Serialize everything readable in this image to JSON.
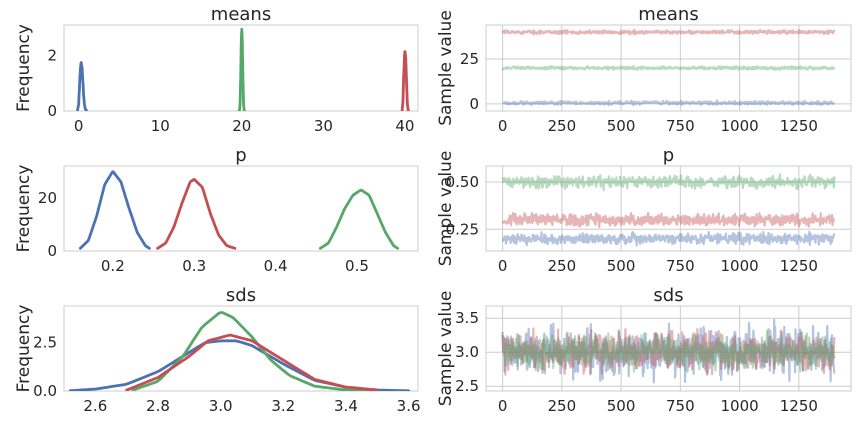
{
  "colors": {
    "blue": "#4c72b0",
    "green": "#55a868",
    "red": "#c44e52",
    "grid": "#cccccc",
    "text": "#262626"
  },
  "chart_data": [
    {
      "type": "line",
      "subtype": "kde",
      "title": "means",
      "xlabel": "",
      "ylabel": "Frequency",
      "xlim": [
        -1.8,
        41.6
      ],
      "ylim": [
        0,
        3.1
      ],
      "xticks": [
        0,
        10,
        20,
        30,
        40
      ],
      "xticklabels": [
        "0",
        "10",
        "20",
        "30",
        "40"
      ],
      "yticks": [
        0,
        2
      ],
      "yticklabels": [
        "0",
        "2"
      ],
      "grid": false,
      "series": [
        {
          "color": "blue",
          "x": [
            -0.15,
            0.0,
            0.1,
            0.2,
            0.3,
            0.4,
            0.5,
            0.6,
            0.7,
            0.8,
            0.95
          ],
          "y": [
            0.02,
            0.25,
            0.9,
            1.5,
            1.75,
            1.6,
            1.15,
            0.6,
            0.25,
            0.08,
            0.02
          ]
        },
        {
          "color": "green",
          "x": [
            19.7,
            19.78,
            19.86,
            19.94,
            20.0,
            20.06,
            20.14,
            20.22,
            20.3
          ],
          "y": [
            0.02,
            0.2,
            1.2,
            2.6,
            2.95,
            2.5,
            1.1,
            0.2,
            0.02
          ]
        },
        {
          "color": "red",
          "x": [
            39.65,
            39.75,
            39.85,
            39.95,
            40.0,
            40.1,
            40.2,
            40.3,
            40.4
          ],
          "y": [
            0.02,
            0.3,
            1.3,
            2.0,
            2.15,
            1.9,
            1.0,
            0.25,
            0.02
          ]
        }
      ]
    },
    {
      "type": "line",
      "subtype": "trace",
      "title": "means",
      "xlabel": "",
      "ylabel": "Sample value",
      "xlim": [
        -70,
        1470
      ],
      "ylim": [
        -4,
        44
      ],
      "xticks": [
        0,
        250,
        500,
        750,
        1000,
        1250
      ],
      "xticklabels": [
        "0",
        "250",
        "500",
        "750",
        "1000",
        "1250"
      ],
      "yticks": [
        0,
        25
      ],
      "yticklabels": [
        "0",
        "25"
      ],
      "grid": true,
      "n_samples": 1400,
      "series": [
        {
          "color": "red",
          "x": [
            0,
            1400
          ],
          "y": [
            40,
            40
          ],
          "band": 1.4
        },
        {
          "color": "green",
          "x": [
            0,
            1400
          ],
          "y": [
            20,
            20
          ],
          "band": 1.2
        },
        {
          "color": "blue",
          "x": [
            0,
            1400
          ],
          "y": [
            0.5,
            0.5
          ],
          "band": 1.4
        }
      ]
    },
    {
      "type": "line",
      "subtype": "kde",
      "title": "p",
      "xlabel": "",
      "ylabel": "Frequency",
      "xlim": [
        0.14,
        0.575
      ],
      "ylim": [
        0,
        32
      ],
      "xticks": [
        0.2,
        0.3,
        0.4,
        0.5
      ],
      "xticklabels": [
        "0.2",
        "0.3",
        "0.4",
        "0.5"
      ],
      "yticks": [
        0,
        20
      ],
      "yticklabels": [
        "0",
        "20"
      ],
      "grid": false,
      "series": [
        {
          "color": "blue",
          "x": [
            0.16,
            0.17,
            0.18,
            0.19,
            0.2,
            0.21,
            0.22,
            0.23,
            0.24,
            0.245
          ],
          "y": [
            1,
            4,
            13,
            25,
            30,
            26,
            16,
            7,
            2,
            1
          ]
        },
        {
          "color": "red",
          "x": [
            0.255,
            0.265,
            0.275,
            0.285,
            0.295,
            0.3,
            0.31,
            0.32,
            0.33,
            0.34,
            0.35
          ],
          "y": [
            1,
            3,
            9,
            18,
            26,
            27,
            24,
            14,
            6,
            2,
            1
          ]
        },
        {
          "color": "green",
          "x": [
            0.455,
            0.465,
            0.475,
            0.485,
            0.495,
            0.505,
            0.515,
            0.525,
            0.535,
            0.545,
            0.55
          ],
          "y": [
            1,
            3,
            9,
            16,
            21,
            23,
            21,
            14,
            7,
            2,
            1
          ]
        }
      ]
    },
    {
      "type": "line",
      "subtype": "trace",
      "title": "p",
      "xlabel": "",
      "ylabel": "Sample value",
      "xlim": [
        -70,
        1470
      ],
      "ylim": [
        0.135,
        0.585
      ],
      "xticks": [
        0,
        250,
        500,
        750,
        1000,
        1250
      ],
      "xticklabels": [
        "0",
        "250",
        "500",
        "750",
        "1000",
        "1250"
      ],
      "yticks": [
        0.25,
        0.5
      ],
      "yticklabels": [
        "0.25",
        "0.50"
      ],
      "grid": true,
      "n_samples": 1400,
      "series": [
        {
          "color": "green",
          "x": [
            0,
            1400
          ],
          "y": [
            0.5,
            0.5
          ],
          "band": 0.045
        },
        {
          "color": "red",
          "x": [
            0,
            1400
          ],
          "y": [
            0.3,
            0.3
          ],
          "band": 0.045
        },
        {
          "color": "blue",
          "x": [
            0,
            1400
          ],
          "y": [
            0.2,
            0.2
          ],
          "band": 0.04
        }
      ]
    },
    {
      "type": "line",
      "subtype": "kde",
      "title": "sds",
      "xlabel": "",
      "ylabel": "Frequency",
      "xlim": [
        2.5,
        3.63
      ],
      "ylim": [
        0,
        4.4
      ],
      "xticks": [
        2.6,
        2.8,
        3.0,
        3.2,
        3.4,
        3.6
      ],
      "xticklabels": [
        "2.6",
        "2.8",
        "3.0",
        "3.2",
        "3.4",
        "3.6"
      ],
      "yticks": [
        0,
        2.5
      ],
      "yticklabels": [
        "0.0",
        "2.5"
      ],
      "grid": false,
      "series": [
        {
          "color": "blue",
          "x": [
            2.52,
            2.6,
            2.7,
            2.8,
            2.9,
            2.95,
            3.0,
            3.05,
            3.1,
            3.2,
            3.3,
            3.4,
            3.5,
            3.6
          ],
          "y": [
            0.02,
            0.1,
            0.35,
            1.0,
            2.0,
            2.5,
            2.6,
            2.6,
            2.35,
            1.4,
            0.55,
            0.2,
            0.05,
            0.01
          ]
        },
        {
          "color": "green",
          "x": [
            2.72,
            2.8,
            2.88,
            2.94,
            3.0,
            3.04,
            3.1,
            3.16,
            3.22,
            3.3,
            3.4,
            3.48
          ],
          "y": [
            0.05,
            0.5,
            1.8,
            3.3,
            4.1,
            3.8,
            2.8,
            1.6,
            0.8,
            0.25,
            0.05,
            0.02
          ]
        },
        {
          "color": "red",
          "x": [
            2.7,
            2.8,
            2.9,
            2.96,
            3.03,
            3.1,
            3.2,
            3.3,
            3.4,
            3.5
          ],
          "y": [
            0.05,
            0.7,
            1.8,
            2.6,
            2.9,
            2.6,
            1.6,
            0.6,
            0.2,
            0.05
          ]
        }
      ]
    },
    {
      "type": "line",
      "subtype": "trace",
      "title": "sds",
      "xlabel": "",
      "ylabel": "Sample value",
      "xlim": [
        -70,
        1470
      ],
      "ylim": [
        2.43,
        3.68
      ],
      "xticks": [
        0,
        250,
        500,
        750,
        1000,
        1250
      ],
      "xticklabels": [
        "0",
        "250",
        "500",
        "750",
        "1000",
        "1250"
      ],
      "yticks": [
        2.5,
        3.0,
        3.5
      ],
      "yticklabels": [
        "2.5",
        "3.0",
        "3.5"
      ],
      "grid": true,
      "n_samples": 1400,
      "series": [
        {
          "color": "blue",
          "x": [
            0,
            1400
          ],
          "y": [
            3.0,
            3.0
          ],
          "band": 0.5
        },
        {
          "color": "red",
          "x": [
            0,
            1400
          ],
          "y": [
            3.0,
            3.0
          ],
          "band": 0.4
        },
        {
          "color": "green",
          "x": [
            0,
            1400
          ],
          "y": [
            3.0,
            3.0
          ],
          "band": 0.35
        }
      ]
    }
  ]
}
